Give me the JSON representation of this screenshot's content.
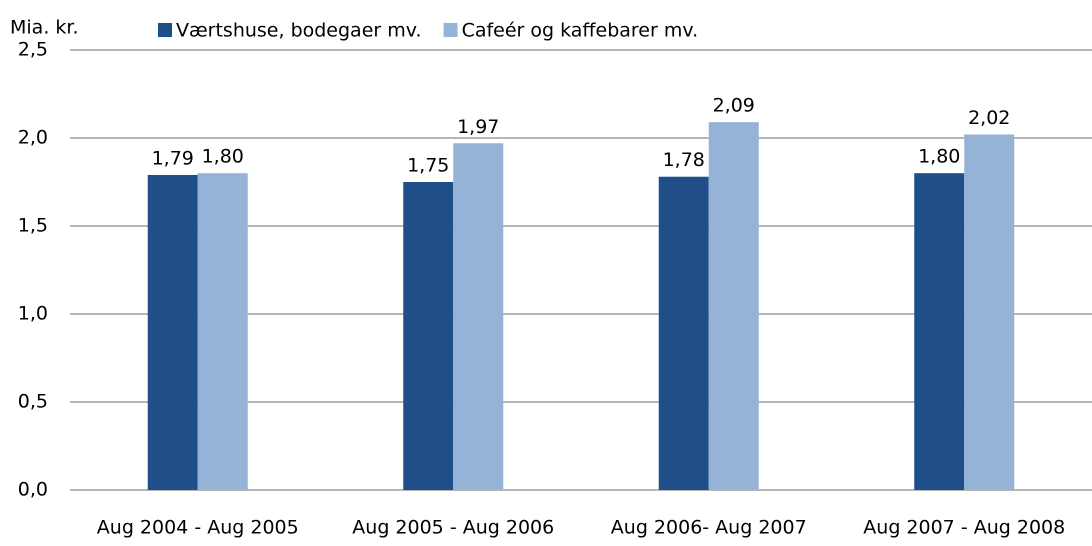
{
  "chart_data": {
    "type": "bar",
    "y_label": "Mia. kr.",
    "categories": [
      "Aug 2004 - Aug 2005",
      "Aug 2005 - Aug 2006",
      "Aug 2006- Aug 2007",
      "Aug 2007 - Aug 2008"
    ],
    "series": [
      {
        "name": "Værtshuse, bodegaer mv.",
        "color": "#1f4e89",
        "values": [
          1.79,
          1.75,
          1.78,
          1.8
        ],
        "value_labels": [
          "1,79",
          "1,75",
          "1,78",
          "1,80"
        ]
      },
      {
        "name": "Cafeér og kaffebarer mv.",
        "color": "#95b3d7",
        "values": [
          1.8,
          1.97,
          2.09,
          2.02
        ],
        "value_labels": [
          "1,80",
          "1,97",
          "2,09",
          "2,02"
        ]
      }
    ],
    "ylim": [
      0,
      2.5
    ],
    "yticks": [
      {
        "value": 0,
        "label": "0,0"
      },
      {
        "value": 0.5,
        "label": "0,5"
      },
      {
        "value": 1,
        "label": "1,0"
      },
      {
        "value": 1.5,
        "label": "1,5"
      },
      {
        "value": 2,
        "label": "2,0"
      },
      {
        "value": 2.5,
        "label": "2,5"
      }
    ],
    "grid": true
  }
}
